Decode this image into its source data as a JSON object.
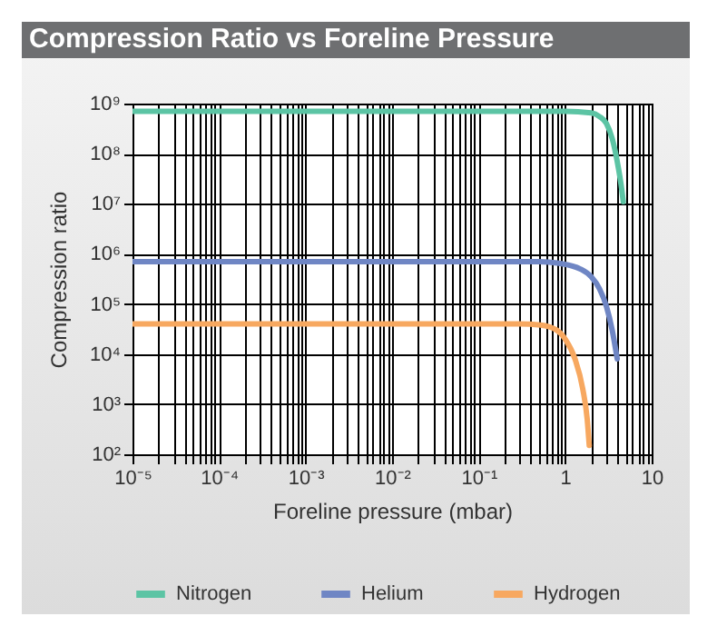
{
  "chart_data": {
    "type": "line",
    "title": "Compression Ratio vs Foreline Pressure",
    "xlabel": "Foreline pressure (mbar)",
    "ylabel": "Compression ratio",
    "log": "xy",
    "grid": true,
    "legend": "bottom",
    "marker": "none",
    "line_style": "solid",
    "xlim": [
      1e-05,
      10
    ],
    "ylim": [
      100,
      1000000000
    ],
    "xticks": [
      {
        "value": 1e-05,
        "label": "10⁻⁵"
      },
      {
        "value": 2e-05,
        "label": null
      },
      {
        "value": 3e-05,
        "label": null
      },
      {
        "value": 4e-05,
        "label": null
      },
      {
        "value": 5e-05,
        "label": null
      },
      {
        "value": 6e-05,
        "label": null
      },
      {
        "value": 7e-05,
        "label": null
      },
      {
        "value": 8e-05,
        "label": null
      },
      {
        "value": 9e-05,
        "label": null
      },
      {
        "value": 0.0001,
        "label": "10⁻⁴"
      },
      {
        "value": 0.0002,
        "label": null
      },
      {
        "value": 0.0003,
        "label": null
      },
      {
        "value": 0.0004,
        "label": null
      },
      {
        "value": 0.0005,
        "label": null
      },
      {
        "value": 0.0006,
        "label": null
      },
      {
        "value": 0.0007,
        "label": null
      },
      {
        "value": 0.0008,
        "label": null
      },
      {
        "value": 0.0009,
        "label": null
      },
      {
        "value": 0.001,
        "label": "10⁻³"
      },
      {
        "value": 0.002,
        "label": null
      },
      {
        "value": 0.003,
        "label": null
      },
      {
        "value": 0.004,
        "label": null
      },
      {
        "value": 0.005,
        "label": null
      },
      {
        "value": 0.006,
        "label": null
      },
      {
        "value": 0.007,
        "label": null
      },
      {
        "value": 0.008,
        "label": null
      },
      {
        "value": 0.009,
        "label": null
      },
      {
        "value": 0.01,
        "label": "10⁻²"
      },
      {
        "value": 0.02,
        "label": null
      },
      {
        "value": 0.03,
        "label": null
      },
      {
        "value": 0.04,
        "label": null
      },
      {
        "value": 0.05,
        "label": null
      },
      {
        "value": 0.06,
        "label": null
      },
      {
        "value": 0.07,
        "label": null
      },
      {
        "value": 0.08,
        "label": null
      },
      {
        "value": 0.09,
        "label": null
      },
      {
        "value": 0.1,
        "label": "10⁻¹"
      },
      {
        "value": 0.2,
        "label": null
      },
      {
        "value": 0.3,
        "label": null
      },
      {
        "value": 0.4,
        "label": null
      },
      {
        "value": 0.5,
        "label": null
      },
      {
        "value": 0.6,
        "label": null
      },
      {
        "value": 0.7,
        "label": null
      },
      {
        "value": 0.8,
        "label": null
      },
      {
        "value": 0.9,
        "label": null
      },
      {
        "value": 1,
        "label": "1"
      },
      {
        "value": 2,
        "label": null
      },
      {
        "value": 3,
        "label": null
      },
      {
        "value": 4,
        "label": null
      },
      {
        "value": 5,
        "label": null
      },
      {
        "value": 6,
        "label": null
      },
      {
        "value": 7,
        "label": null
      },
      {
        "value": 8,
        "label": null
      },
      {
        "value": 9,
        "label": null
      },
      {
        "value": 10,
        "label": "10"
      }
    ],
    "yticks": [
      {
        "value": 100,
        "label": "10²"
      },
      {
        "value": 1000,
        "label": "10³"
      },
      {
        "value": 10000,
        "label": "10⁴"
      },
      {
        "value": 100000,
        "label": "10⁵"
      },
      {
        "value": 1000000,
        "label": "10⁶"
      },
      {
        "value": 10000000,
        "label": "10⁷"
      },
      {
        "value": 100000000,
        "label": "10⁸"
      },
      {
        "value": 1000000000,
        "label": "10⁹"
      }
    ],
    "series": [
      {
        "name": "Nitrogen",
        "color": "#5cc4a4",
        "x": [
          1e-05,
          0.1,
          1,
          2,
          2.5,
          3,
          3.5,
          4,
          4.5,
          4.7
        ],
        "values": [
          700000000,
          700000000,
          700000000,
          650000000,
          550000000,
          400000000,
          200000000,
          70000000,
          20000000,
          11000000
        ]
      },
      {
        "name": "Helium",
        "color": "#6f86c4",
        "x": [
          1e-05,
          0.1,
          0.5,
          0.85,
          1.5,
          2,
          2.5,
          3,
          3.5,
          4
        ],
        "values": [
          700000,
          700000,
          700000,
          650000,
          500000,
          350000,
          200000,
          90000,
          30000,
          8000
        ]
      },
      {
        "name": "Hydrogen",
        "color": "#f7a860",
        "x": [
          1e-05,
          0.1,
          0.3,
          0.52,
          0.8,
          1,
          1.3,
          1.6,
          1.8,
          1.9
        ],
        "values": [
          40000,
          40000,
          40000,
          38000,
          30000,
          20000,
          8000,
          2000,
          500,
          150
        ]
      }
    ]
  }
}
